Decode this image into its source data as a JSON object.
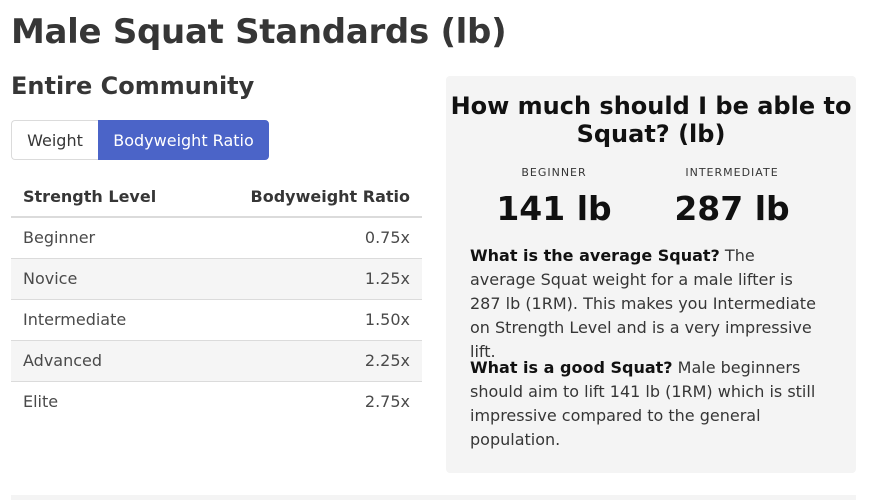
{
  "page": {
    "title": "Male Squat Standards (lb)",
    "section_title": "Entire Community"
  },
  "toggle": {
    "weight_label": "Weight",
    "ratio_label": "Bodyweight Ratio",
    "selected": "Bodyweight Ratio",
    "selected_color": "#4b64c8"
  },
  "table": {
    "headers": [
      "Strength Level",
      "Bodyweight Ratio"
    ],
    "rows": [
      {
        "level": "Beginner",
        "ratio": "0.75x"
      },
      {
        "level": "Novice",
        "ratio": "1.25x"
      },
      {
        "level": "Intermediate",
        "ratio": "1.50x"
      },
      {
        "level": "Advanced",
        "ratio": "2.25x"
      },
      {
        "level": "Elite",
        "ratio": "2.75x"
      }
    ]
  },
  "card": {
    "title": "How much should I be able to Squat? (lb)",
    "stats": [
      {
        "label": "BEGINNER",
        "value": "141 lb"
      },
      {
        "label": "INTERMEDIATE",
        "value": "287 lb"
      }
    ],
    "paragraphs": [
      {
        "question": "What is the average Squat?",
        "answer": " The average Squat weight for a male lifter is 287 lb (1RM). This makes you Intermediate on Strength Level and is a very impressive lift."
      },
      {
        "question": "What is a good Squat?",
        "answer": " Male beginners should aim to lift 141 lb (1RM) which is still impressive compared to the general population."
      }
    ]
  }
}
